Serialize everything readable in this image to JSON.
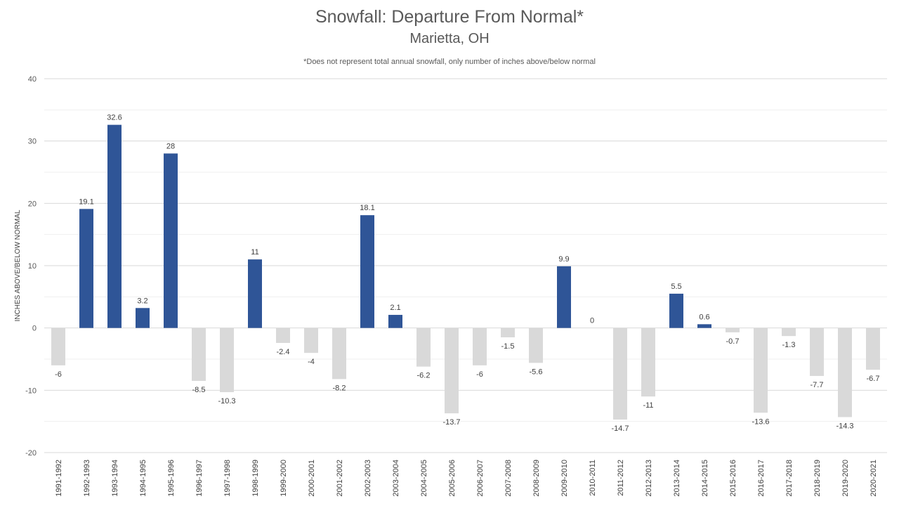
{
  "chart_data": {
    "type": "bar",
    "title": "Snowfall: Departure From Normal*",
    "subtitle": "Marietta, OH",
    "note": "*Does not represent  total annual snowfall, only number of inches above/below normal",
    "ylabel": "INCHES ABOVE/BELOW NORMAL",
    "ylim": [
      -20,
      40
    ],
    "yticks": [
      -20,
      -10,
      0,
      10,
      20,
      30,
      40
    ],
    "grid": true,
    "categories": [
      "1991-1992",
      "1992-1993",
      "1993-1994",
      "1994-1995",
      "1995-1996",
      "1996-1997",
      "1997-1998",
      "1998-1999",
      "1999-2000",
      "2000-2001",
      "2001-2002",
      "2002-2003",
      "2003-2004",
      "2004-2005",
      "2005-2006",
      "2006-2007",
      "2007-2008",
      "2008-2009",
      "2009-2010",
      "2010-2011",
      "2011-2012",
      "2012-2013",
      "2013-2014",
      "2014-2015",
      "2015-2016",
      "2016-2017",
      "2017-2018",
      "2018-2019",
      "2019-2020",
      "2020-2021"
    ],
    "values": [
      -6,
      19.1,
      32.6,
      3.2,
      28,
      -8.5,
      -10.3,
      11,
      -2.4,
      -4,
      -8.2,
      18.1,
      2.1,
      -6.2,
      -13.7,
      -6,
      -1.5,
      -5.6,
      9.9,
      0,
      -14.7,
      -11,
      5.5,
      0.6,
      -0.7,
      -13.6,
      -1.3,
      -7.7,
      -14.3,
      -6.7
    ],
    "colors": {
      "positive": "#2f5597",
      "negative": "#d9d9d9"
    }
  }
}
